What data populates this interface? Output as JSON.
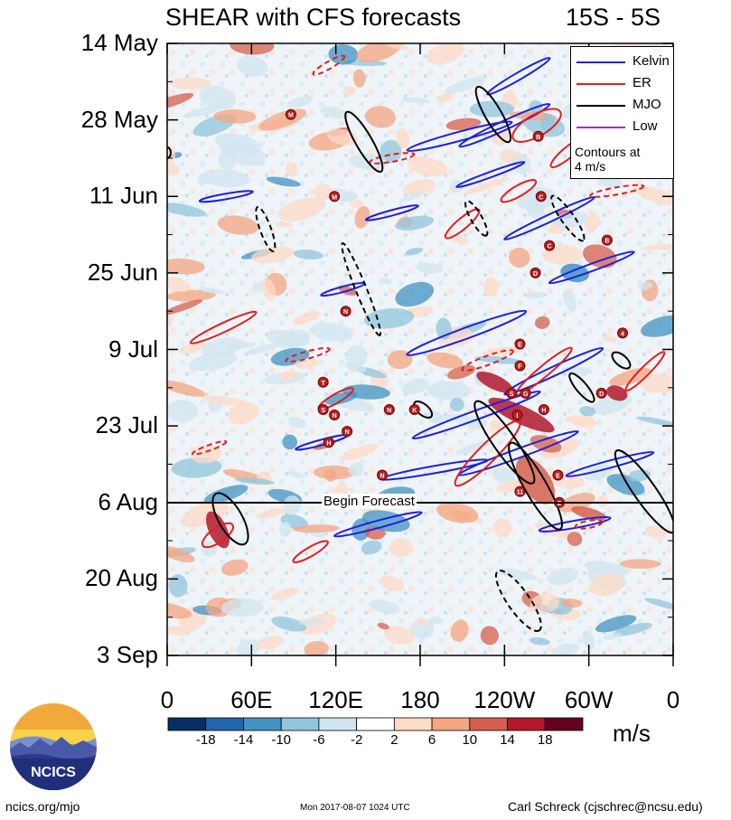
{
  "header": {
    "title": "SHEAR with CFS forecasts",
    "region": "15S - 5S"
  },
  "chart_data": {
    "type": "heatmap",
    "title": "SHEAR with CFS forecasts",
    "subtitle": "15S - 5S",
    "x_ticks": [
      "0",
      "60E",
      "120E",
      "180",
      "120W",
      "60W",
      "0"
    ],
    "x_range_deg": [
      0,
      360
    ],
    "y_ticks": [
      "14 May",
      "28 May",
      "11 Jun",
      "25 Jun",
      "9 Jul",
      "23 Jul",
      "6 Aug",
      "20 Aug",
      "3 Sep"
    ],
    "y_range_days": [
      0,
      112
    ],
    "forecast_line": {
      "label": "Begin Forecast",
      "date": "6 Aug"
    },
    "colorbar": {
      "ticks": [
        "-18",
        "-14",
        "-10",
        "-6",
        "-2",
        "2",
        "6",
        "10",
        "14",
        "18"
      ],
      "colors": [
        "#053061",
        "#2166ac",
        "#4393c3",
        "#92c5de",
        "#d1e5f0",
        "#ffffff",
        "#fddbc7",
        "#f4a582",
        "#d6604d",
        "#b2182b",
        "#67001f"
      ],
      "units": "m/s"
    },
    "legend": {
      "entries": [
        {
          "label": "Kelvin",
          "color": "#1f1fe0"
        },
        {
          "label": "ER",
          "color": "#e01f1f"
        },
        {
          "label": "MJO",
          "color": "#000000"
        },
        {
          "label": "Low",
          "color": "#9b30d0"
        }
      ],
      "note": "Contours at\n4 m/s"
    },
    "storm_markers": [
      {
        "letter": "M",
        "lon": 88,
        "day": 13
      },
      {
        "letter": "B",
        "lon": 264,
        "day": 17
      },
      {
        "letter": "M",
        "lon": 119,
        "day": 28
      },
      {
        "letter": "C",
        "lon": 266,
        "day": 28
      },
      {
        "letter": "B",
        "lon": 313,
        "day": 36
      },
      {
        "letter": "C",
        "lon": 272,
        "day": 37
      },
      {
        "letter": "D",
        "lon": 262,
        "day": 42
      },
      {
        "letter": "N",
        "lon": 127,
        "day": 49
      },
      {
        "letter": "4",
        "lon": 324,
        "day": 53
      },
      {
        "letter": "E",
        "lon": 251,
        "day": 55
      },
      {
        "letter": "F",
        "lon": 251,
        "day": 59
      },
      {
        "letter": "T",
        "lon": 111,
        "day": 62
      },
      {
        "letter": "D",
        "lon": 309,
        "day": 64
      },
      {
        "letter": "S",
        "lon": 245,
        "day": 64
      },
      {
        "letter": "G",
        "lon": 255,
        "day": 64
      },
      {
        "letter": "S",
        "lon": 111,
        "day": 67
      },
      {
        "letter": "N",
        "lon": 119,
        "day": 68
      },
      {
        "letter": "N",
        "lon": 158,
        "day": 67
      },
      {
        "letter": "K",
        "lon": 176,
        "day": 67
      },
      {
        "letter": "H",
        "lon": 268,
        "day": 67
      },
      {
        "letter": "I",
        "lon": 249,
        "day": 68
      },
      {
        "letter": "N",
        "lon": 128,
        "day": 71
      },
      {
        "letter": "H",
        "lon": 115,
        "day": 73
      },
      {
        "letter": "N",
        "lon": 153,
        "day": 79
      },
      {
        "letter": "E",
        "lon": 278,
        "day": 79
      },
      {
        "letter": "11",
        "lon": 251,
        "day": 82
      },
      {
        "letter": "Z",
        "lon": 279,
        "day": 84
      }
    ]
  },
  "footer": {
    "logo_text": "NCICS",
    "website": "ncics.org/mjo",
    "timestamp": "Mon 2017-08-07 1024 UTC",
    "author": "Carl Schreck (cjschrec@ncsu.edu)"
  }
}
